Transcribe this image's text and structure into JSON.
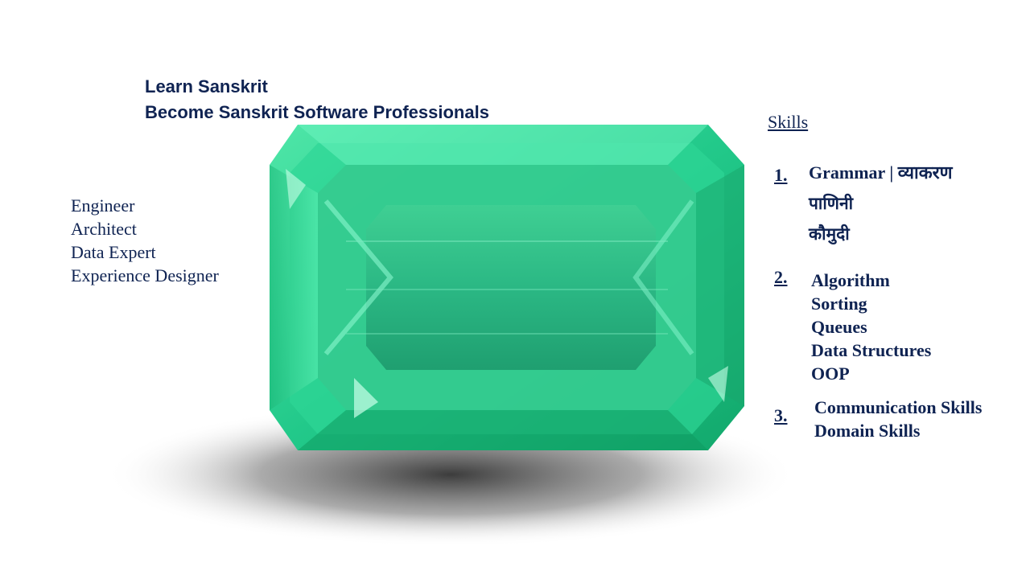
{
  "headline": {
    "line1": "Learn Sanskrit",
    "line2": "Become Sanskrit Software Professionals"
  },
  "roles": [
    "Engineer",
    "Architect",
    "Data Expert",
    "Experience Designer"
  ],
  "skills": {
    "title": "Skills",
    "groups": [
      {
        "number": "1.",
        "lines": [
          "Grammar | व्याकरण",
          "पाणिनी",
          "कौमुदी"
        ]
      },
      {
        "number": "2.",
        "lines": [
          "Algorithm",
          "Sorting",
          "Queues",
          "Data Structures",
          "OOP"
        ]
      },
      {
        "number": "3.",
        "lines": [
          "Communication Skills",
          "Domain Skills"
        ]
      }
    ]
  },
  "colors": {
    "text": "#0f2352",
    "emerald_light": "#5ef0b4",
    "emerald_mid": "#22c98a",
    "emerald_dark": "#0c8f5c"
  },
  "image": {
    "subject": "emerald-gemstone"
  }
}
